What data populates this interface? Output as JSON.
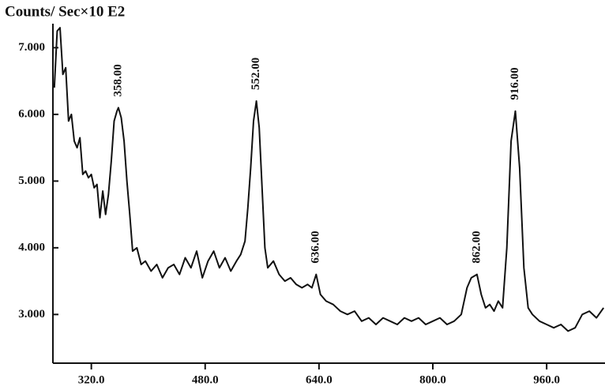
{
  "chart_data": {
    "type": "line",
    "title": "Counts/ Sec×10 E2",
    "color": "#111111",
    "xlim": [
      266,
      1042
    ],
    "ylim": [
      2.27,
      7.36
    ],
    "xticks": [
      {
        "value": 320,
        "label": "320.0"
      },
      {
        "value": 480,
        "label": "480.0"
      },
      {
        "value": 640,
        "label": "640.0"
      },
      {
        "value": 800,
        "label": "800.0"
      },
      {
        "value": 960,
        "label": "960.0"
      }
    ],
    "yticks": [
      {
        "value": 3,
        "label": "3.000"
      },
      {
        "value": 4,
        "label": "4.000"
      },
      {
        "value": 5,
        "label": "5.000"
      },
      {
        "value": 6,
        "label": "6.000"
      },
      {
        "value": 7,
        "label": "7.000"
      }
    ],
    "x": [
      268,
      272,
      276,
      280,
      284,
      288,
      292,
      296,
      300,
      304,
      308,
      312,
      316,
      320,
      324,
      328,
      332,
      336,
      340,
      344,
      348,
      352,
      356,
      358,
      362,
      366,
      370,
      374,
      378,
      384,
      390,
      396,
      404,
      412,
      420,
      428,
      436,
      444,
      452,
      460,
      468,
      476,
      484,
      492,
      500,
      508,
      516,
      524,
      530,
      536,
      540,
      544,
      548,
      552,
      556,
      560,
      564,
      568,
      576,
      584,
      592,
      600,
      608,
      616,
      624,
      630,
      636,
      642,
      650,
      660,
      670,
      680,
      690,
      700,
      710,
      720,
      730,
      740,
      750,
      760,
      770,
      780,
      790,
      800,
      810,
      820,
      830,
      840,
      848,
      854,
      862,
      868,
      874,
      880,
      886,
      892,
      898,
      904,
      910,
      916,
      922,
      928,
      934,
      940,
      950,
      960,
      970,
      980,
      990,
      1000,
      1010,
      1020,
      1030,
      1040
    ],
    "values": [
      6.4,
      7.25,
      7.3,
      6.6,
      6.7,
      5.9,
      6.0,
      5.6,
      5.5,
      5.65,
      5.1,
      5.15,
      5.05,
      5.1,
      4.9,
      4.95,
      4.45,
      4.85,
      4.5,
      4.8,
      5.3,
      5.9,
      6.05,
      6.1,
      5.95,
      5.6,
      5.0,
      4.5,
      3.95,
      4.0,
      3.75,
      3.8,
      3.65,
      3.75,
      3.55,
      3.7,
      3.75,
      3.6,
      3.85,
      3.7,
      3.95,
      3.55,
      3.8,
      3.95,
      3.7,
      3.85,
      3.65,
      3.8,
      3.9,
      4.1,
      4.6,
      5.2,
      5.9,
      6.2,
      5.8,
      4.9,
      4.0,
      3.7,
      3.8,
      3.6,
      3.5,
      3.55,
      3.45,
      3.4,
      3.45,
      3.4,
      3.6,
      3.3,
      3.2,
      3.15,
      3.05,
      3.0,
      3.05,
      2.9,
      2.95,
      2.85,
      2.95,
      2.9,
      2.85,
      2.95,
      2.9,
      2.95,
      2.85,
      2.9,
      2.95,
      2.85,
      2.9,
      3.0,
      3.4,
      3.55,
      3.6,
      3.3,
      3.1,
      3.15,
      3.05,
      3.2,
      3.1,
      4.0,
      5.6,
      6.05,
      5.2,
      3.7,
      3.1,
      3.0,
      2.9,
      2.85,
      2.8,
      2.85,
      2.75,
      2.8,
      3.0,
      3.05,
      2.95,
      3.1
    ],
    "peaks": [
      {
        "x": 358,
        "y": 6.1,
        "label": "358.00"
      },
      {
        "x": 552,
        "y": 6.2,
        "label": "552.00"
      },
      {
        "x": 636,
        "y": 3.6,
        "label": "636.00"
      },
      {
        "x": 862,
        "y": 3.6,
        "label": "862.00"
      },
      {
        "x": 916,
        "y": 6.05,
        "label": "916.00"
      }
    ]
  }
}
